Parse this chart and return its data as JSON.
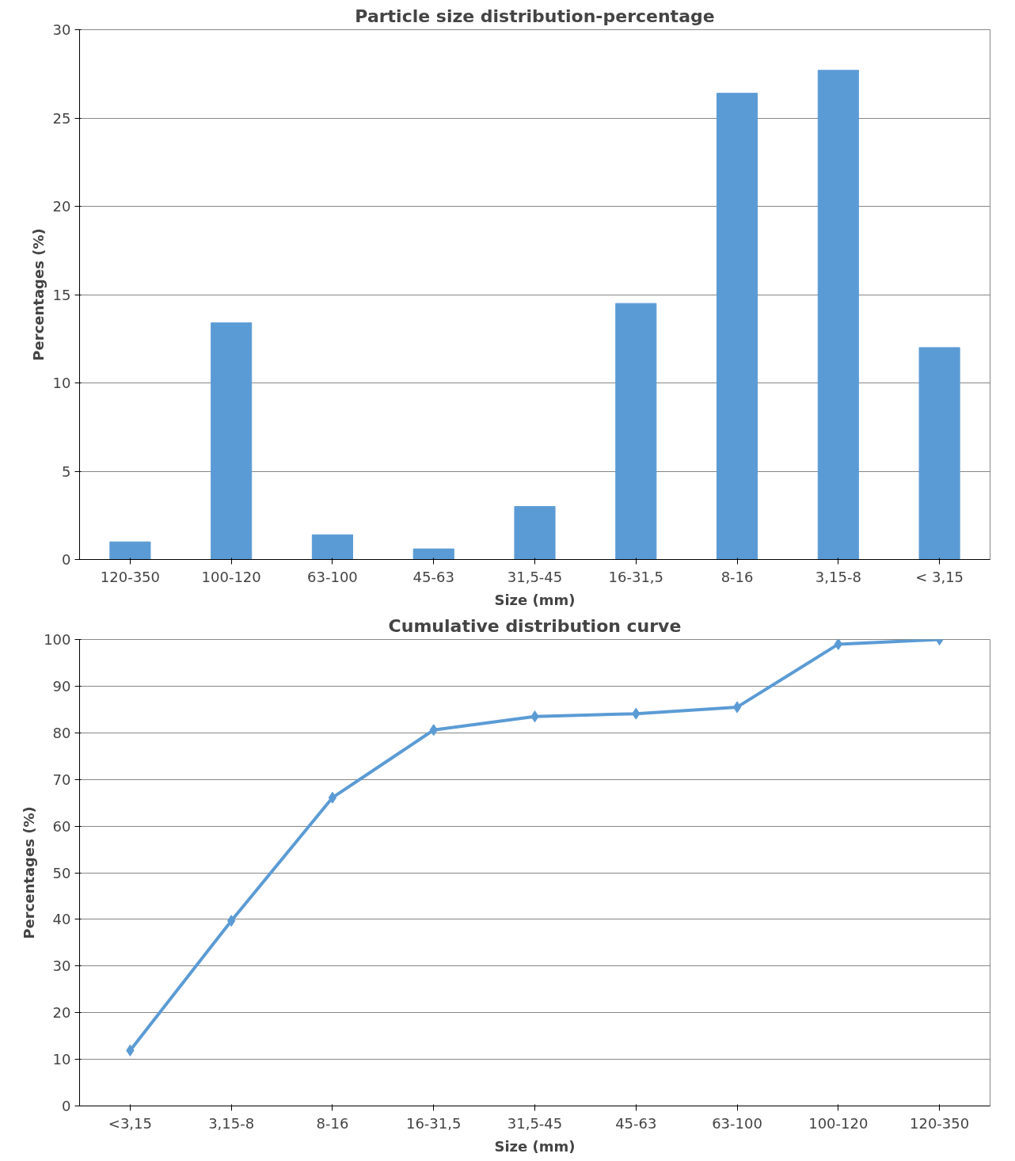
{
  "chart_data": [
    {
      "type": "bar",
      "title": "Particle size distribution-percentage",
      "xlabel": "Size (mm)",
      "ylabel": "Percentages (%)",
      "categories": [
        "120-350",
        "100-120",
        "63-100",
        "45-63",
        "31,5-45",
        "16-31,5",
        "8-16",
        "3,15-8",
        "< 3,15"
      ],
      "series": [
        {
          "color": "#5b9bd5",
          "values": [
            1.0,
            13.4,
            1.4,
            0.6,
            3.0,
            14.5,
            26.4,
            27.7,
            12.0
          ]
        }
      ],
      "ylim": [
        0,
        30
      ],
      "yticks": [
        0,
        5,
        10,
        15,
        20,
        25,
        30
      ],
      "grid": "y"
    },
    {
      "type": "line",
      "title": "Cumulative distribution curve",
      "xlabel": "Size (mm)",
      "ylabel": "Percentages (%)",
      "categories": [
        "<3,15",
        "3,15-8",
        "8-16",
        "16-31,5",
        "31,5-45",
        "45-63",
        "63-100",
        "100-120",
        "120-350"
      ],
      "series": [
        {
          "color": "#5b9bd5",
          "values": [
            11.9,
            39.7,
            66.1,
            80.6,
            83.5,
            84.1,
            85.5,
            99.0,
            100
          ]
        }
      ],
      "ylim": [
        0,
        100
      ],
      "yticks": [
        0,
        10,
        20,
        30,
        40,
        50,
        60,
        70,
        80,
        90,
        100
      ],
      "grid": "y",
      "marker": "diamond",
      "line_style": "solid"
    }
  ]
}
